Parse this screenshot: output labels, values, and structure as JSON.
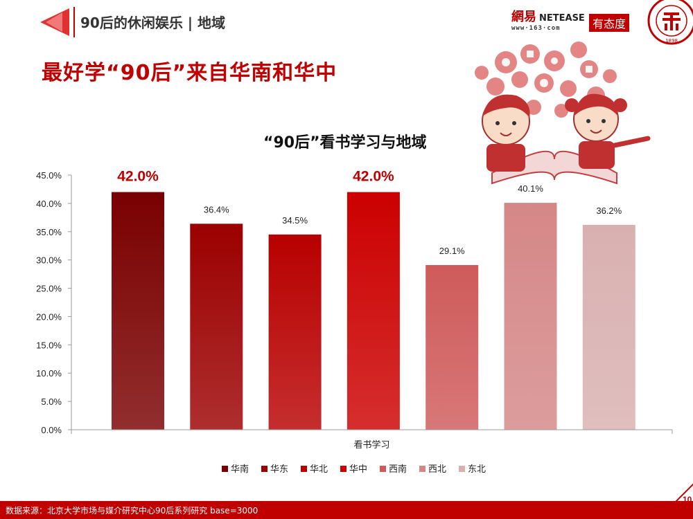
{
  "header": {
    "section_title": "90后的休闲娱乐 | 地域",
    "brand_netease_cn": "網易",
    "brand_netease_en": "NETEASE",
    "brand_url": "www·163·com",
    "brand_youtaidu": "有态度",
    "seal_year": "1898"
  },
  "headline": "最好学“90后”来自华南和华中",
  "chart_title": "“90后”看书学习与地域",
  "colors": {
    "accent": "#c00000",
    "series": [
      "#7a0000",
      "#9c0000",
      "#b80000",
      "#cc0000",
      "#cf5a5a",
      "#d58787",
      "#d9b0b0"
    ]
  },
  "chart_data": {
    "type": "bar",
    "title": "“90后”看书学习与地域",
    "xlabel": "看书学习",
    "ylabel": "",
    "ylim": [
      0,
      45
    ],
    "y_ticks": [
      "0.0%",
      "5.0%",
      "10.0%",
      "15.0%",
      "20.0%",
      "25.0%",
      "30.0%",
      "35.0%",
      "40.0%",
      "45.0%"
    ],
    "categories": [
      "看书学习"
    ],
    "series": [
      {
        "name": "华南",
        "values": [
          42.0
        ],
        "label": "42.0%",
        "highlight": true
      },
      {
        "name": "华东",
        "values": [
          36.4
        ],
        "label": "36.4%",
        "highlight": false
      },
      {
        "name": "华北",
        "values": [
          34.5
        ],
        "label": "34.5%",
        "highlight": false
      },
      {
        "name": "华中",
        "values": [
          42.0
        ],
        "label": "42.0%",
        "highlight": true
      },
      {
        "name": "西南",
        "values": [
          29.1
        ],
        "label": "29.1%",
        "highlight": false
      },
      {
        "name": "西北",
        "values": [
          40.1
        ],
        "label": "40.1%",
        "highlight": false
      },
      {
        "name": "东北",
        "values": [
          36.2
        ],
        "label": "36.2%",
        "highlight": false
      }
    ],
    "grid": false,
    "legend": "bottom"
  },
  "footer": {
    "source": "数据来源：北京大学市场与媒介研究中心90后系列研究 base=3000",
    "page_number": "10"
  }
}
